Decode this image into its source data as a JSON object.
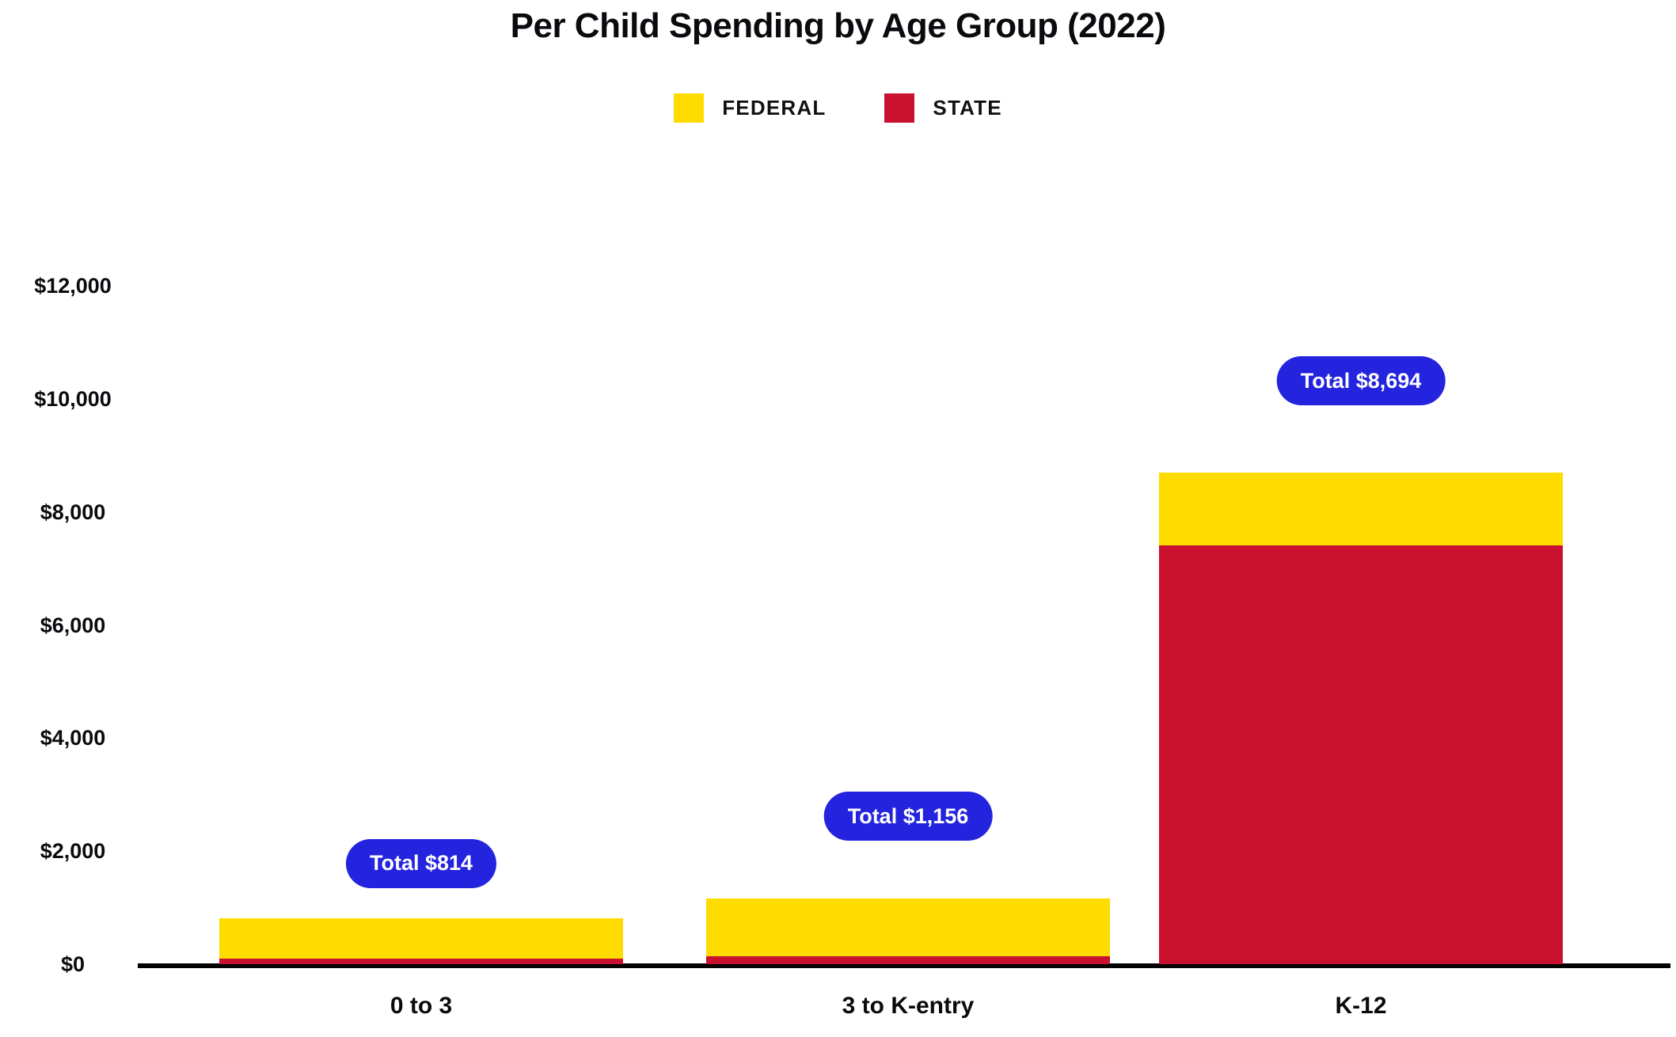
{
  "title": "Per Child Spending by Age Group (2022)",
  "legend": {
    "items": [
      {
        "label": "FEDERAL",
        "color": "#FFDC00"
      },
      {
        "label": "STATE",
        "color": "#C9112F"
      }
    ]
  },
  "colors": {
    "federal": "#FFDC00",
    "state": "#C9112F",
    "total_badge": "#2424DF",
    "badge_text": "#FFFFFF",
    "axis": "#000000",
    "text": "#0B0B0F",
    "background": "#FFFFFF"
  },
  "chart_data": {
    "type": "bar",
    "stacked": true,
    "title": "Per Child Spending by Age Group (2022)",
    "categories": [
      "0 to 3",
      "3 to K-entry",
      "K-12"
    ],
    "series": [
      {
        "name": "FEDERAL",
        "color": "#FFDC00",
        "values": [
          711,
          1021,
          1289
        ]
      },
      {
        "name": "STATE",
        "color": "#C9112F",
        "values": [
          103,
          135,
          7405
        ]
      }
    ],
    "totals": [
      814,
      1156,
      8694
    ],
    "total_labels": [
      "Total $814",
      "Total $1,156",
      "Total $8,694"
    ],
    "yticks": [
      {
        "label": "$12,000",
        "value": 12000
      },
      {
        "label": "$10,000",
        "value": 10000
      },
      {
        "label": "$8,000",
        "value": 8000
      },
      {
        "label": "$6,000",
        "value": 6000
      },
      {
        "label": "$4,000",
        "value": 4000
      },
      {
        "label": "$2,000",
        "value": 2000
      },
      {
        "label": "$0",
        "value": 0
      }
    ],
    "ylim": [
      0,
      12000
    ],
    "xlabel": "",
    "ylabel": "",
    "grid": false,
    "legend_position": "top"
  }
}
